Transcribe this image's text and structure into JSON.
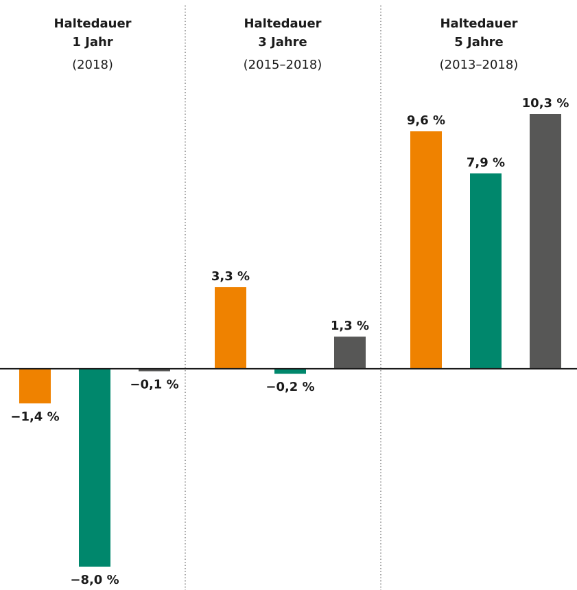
{
  "chart_data": {
    "type": "bar",
    "categories": [
      [
        "Haltedauer",
        "1 Jahr",
        "(2018)"
      ],
      [
        "Haltedauer",
        "3 Jahre",
        "(2015–2018)"
      ],
      [
        "Haltedauer",
        "5 Jahre",
        "(2013–2018)"
      ]
    ],
    "series": [
      {
        "color": "#ef8200",
        "values": [
          -1.4,
          3.3,
          9.6
        ],
        "value_labels": [
          "−1,4 %",
          "3,3 %",
          "9,6 %"
        ]
      },
      {
        "color": "#00876c",
        "values": [
          -8.0,
          -0.2,
          7.9
        ],
        "value_labels": [
          "−8,0 %",
          "−0,2 %",
          "7,9 %"
        ]
      },
      {
        "color": "#575756",
        "values": [
          -0.1,
          1.3,
          10.3
        ],
        "value_labels": [
          "−0,1 %",
          "1,3 %",
          "10,3 %"
        ]
      }
    ]
  }
}
